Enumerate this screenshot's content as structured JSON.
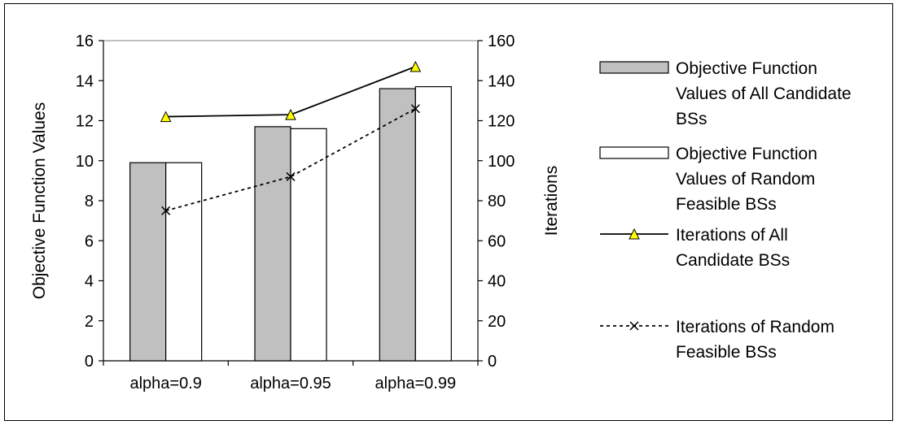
{
  "chart_data": {
    "type": "bar",
    "categories": [
      "alpha=0.9",
      "alpha=0.95",
      "alpha=0.99"
    ],
    "series": [
      {
        "name": "Objective Function Values of All Candidate BSs",
        "kind": "bar",
        "axis": "left",
        "values": [
          9.9,
          11.7,
          13.6
        ],
        "color": "#c0c0c0"
      },
      {
        "name": "Objective Function Values of Random Feasible BSs",
        "kind": "bar",
        "axis": "left",
        "values": [
          9.9,
          11.6,
          13.7
        ],
        "color": "#ffffff"
      },
      {
        "name": "Iterations of All Candidate BSs",
        "kind": "line",
        "axis": "right",
        "marker": "triangle",
        "line_style": "solid",
        "values": [
          122,
          123,
          147
        ],
        "color": "#ffff00"
      },
      {
        "name": "Iterations of Random Feasible BSs",
        "kind": "line",
        "axis": "right",
        "marker": "x",
        "line_style": "dotted",
        "values": [
          75,
          92,
          126
        ],
        "color": "#000000"
      }
    ],
    "ylabel": "Objective Function Values",
    "ylabel_right": "Iterations",
    "ylim": [
      0,
      16
    ],
    "ylim_right": [
      0,
      160
    ],
    "yticks": [
      "0",
      "2",
      "4",
      "6",
      "8",
      "10",
      "12",
      "14",
      "16"
    ],
    "yticks_right": [
      "0",
      "20",
      "40",
      "60",
      "80",
      "100",
      "120",
      "140",
      "160"
    ],
    "legend": {
      "position": "right",
      "entries": [
        [
          "Objective Function",
          "Values of All Candidate",
          "BSs"
        ],
        [
          "Objective Function",
          "Values of Random",
          "Feasible BSs"
        ],
        [
          "Iterations of All",
          "Candidate BSs"
        ],
        [
          "Iterations of Random",
          "Feasible BSs"
        ]
      ]
    },
    "grid": false
  }
}
